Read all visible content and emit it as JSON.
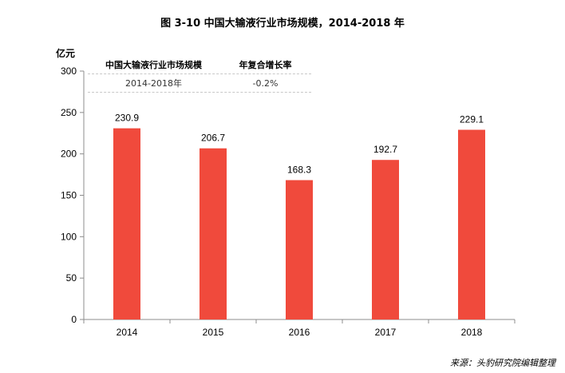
{
  "title": "图  3-10  中国大输液行业市场规模，2014-2018 年",
  "unit_label": "亿元",
  "cagr_table": {
    "headers": [
      "中国大输液行业市场规模",
      "年复合增长率"
    ],
    "row": [
      "2014-2018年",
      "-0.2%"
    ]
  },
  "source": "来源：头豹研究院编辑整理",
  "colors": {
    "bar": "#f04a3c",
    "axis": "#8c8c8c"
  },
  "chart_data": {
    "type": "bar",
    "title": "",
    "xlabel": "",
    "ylabel": "亿元",
    "categories": [
      "2014",
      "2015",
      "2016",
      "2017",
      "2018"
    ],
    "values": [
      230.9,
      206.7,
      168.3,
      192.7,
      229.1
    ],
    "ylim": [
      0,
      300
    ],
    "yticks": [
      0,
      50,
      100,
      150,
      200,
      250,
      300
    ],
    "data_labels": true,
    "grid": false,
    "legend": "none"
  }
}
